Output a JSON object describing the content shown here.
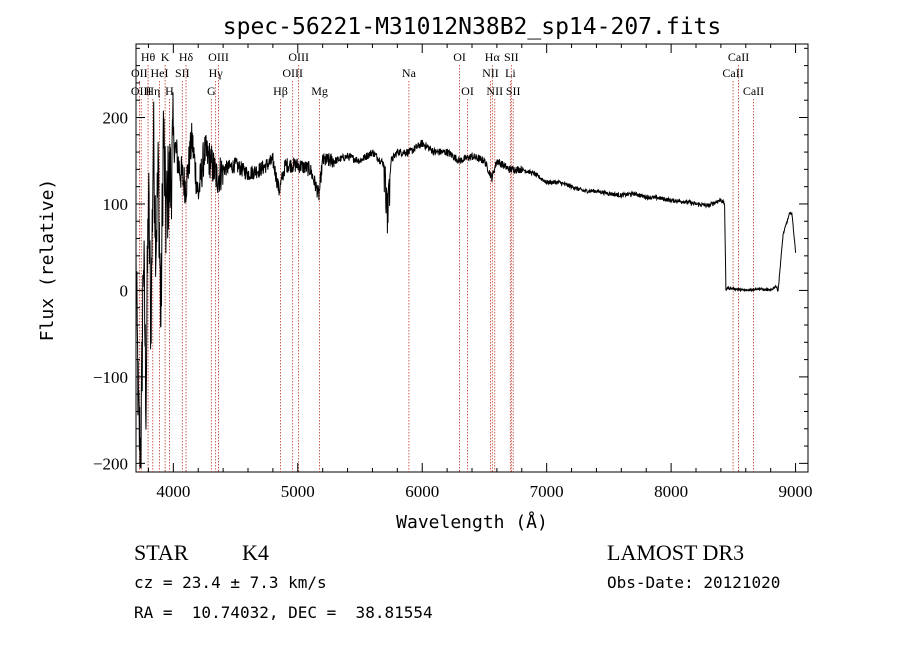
{
  "chart_data": {
    "type": "line",
    "title": "spec-56221-M31012N38B2_sp14-207.fits",
    "xlabel": "Wavelength (Å)",
    "ylabel": "Flux (relative)",
    "xlim": [
      3700,
      9100
    ],
    "ylim": [
      -210,
      285
    ],
    "x_ticks": [
      4000,
      5000,
      6000,
      7000,
      8000,
      9000
    ],
    "x_tick_labels": [
      "4000",
      "5000",
      "6000",
      "7000",
      "8000",
      "9000"
    ],
    "y_ticks": [
      -200,
      -100,
      0,
      100,
      200
    ],
    "y_tick_labels": [
      "−200",
      "−100",
      "0",
      "100",
      "200"
    ],
    "grid": false,
    "series": [
      {
        "name": "flux",
        "x": [
          3700,
          3720,
          3740,
          3760,
          3780,
          3800,
          3820,
          3840,
          3860,
          3880,
          3900,
          3920,
          3940,
          3960,
          3980,
          4000,
          4050,
          4100,
          4150,
          4200,
          4250,
          4300,
          4350,
          4400,
          4500,
          4600,
          4700,
          4800,
          4850,
          4900,
          5000,
          5100,
          5170,
          5200,
          5300,
          5400,
          5500,
          5600,
          5700,
          5720,
          5750,
          5800,
          5900,
          6000,
          6100,
          6200,
          6300,
          6400,
          6500,
          6560,
          6600,
          6700,
          6800,
          6900,
          7000,
          7100,
          7200,
          7300,
          7400,
          7500,
          7600,
          7700,
          7800,
          7900,
          8000,
          8100,
          8200,
          8300,
          8400,
          8430,
          8440,
          8450,
          8500,
          8600,
          8700,
          8800,
          8840,
          8860,
          8900,
          8950,
          8970,
          9000
        ],
        "y": [
          30,
          -150,
          -190,
          50,
          -120,
          110,
          -40,
          180,
          60,
          140,
          -40,
          190,
          80,
          120,
          130,
          175,
          140,
          120,
          175,
          110,
          160,
          150,
          130,
          140,
          145,
          135,
          140,
          150,
          115,
          145,
          145,
          140,
          110,
          150,
          150,
          155,
          150,
          160,
          145,
          105,
          150,
          160,
          160,
          170,
          160,
          160,
          150,
          155,
          150,
          130,
          150,
          140,
          140,
          135,
          125,
          125,
          120,
          115,
          115,
          112,
          110,
          112,
          108,
          107,
          104,
          103,
          100,
          98,
          105,
          100,
          0,
          3,
          2,
          0,
          2,
          0,
          5,
          0,
          65,
          88,
          90,
          45
        ]
      }
    ],
    "lines": [
      {
        "name": "Hθ",
        "x": 3797,
        "row": 1
      },
      {
        "name": "OII",
        "x": 3727,
        "row": 2
      },
      {
        "name": "OIII",
        "x": 3742,
        "row": 3
      },
      {
        "name": "Hη",
        "x": 3835,
        "row": 3
      },
      {
        "name": "HeI",
        "x": 3889,
        "row": 2
      },
      {
        "name": "K",
        "x": 3934,
        "row": 1
      },
      {
        "name": "H",
        "x": 3969,
        "row": 3
      },
      {
        "name": "SII",
        "x": 4072,
        "row": 2
      },
      {
        "name": "Hδ",
        "x": 4102,
        "row": 1
      },
      {
        "name": "OIII",
        "x": 4363,
        "row": 1
      },
      {
        "name": "Hγ",
        "x": 4340,
        "row": 2
      },
      {
        "name": "G",
        "x": 4305,
        "row": 3
      },
      {
        "name": "Hβ",
        "x": 4861,
        "row": 3
      },
      {
        "name": "OIII",
        "x": 5007,
        "row": 1
      },
      {
        "name": "OIII",
        "x": 4959,
        "row": 2
      },
      {
        "name": "Mg",
        "x": 5175,
        "row": 3
      },
      {
        "name": "Na",
        "x": 5893,
        "row": 2
      },
      {
        "name": "OI",
        "x": 6300,
        "row": 1
      },
      {
        "name": "OI",
        "x": 6364,
        "row": 3
      },
      {
        "name": "Hα",
        "x": 6563,
        "row": 1
      },
      {
        "name": "NII",
        "x": 6548,
        "row": 2
      },
      {
        "name": "NII",
        "x": 6583,
        "row": 3
      },
      {
        "name": "SII",
        "x": 6716,
        "row": 1
      },
      {
        "name": "Li",
        "x": 6708,
        "row": 2
      },
      {
        "name": "SII",
        "x": 6731,
        "row": 3
      },
      {
        "name": "CaII",
        "x": 8542,
        "row": 1
      },
      {
        "name": "CaII",
        "x": 8498,
        "row": 2
      },
      {
        "name": "CaII",
        "x": 8662,
        "row": 3
      }
    ]
  },
  "info": {
    "object_class": "STAR",
    "subclass": "K4",
    "redshift": "cz = 23.4 ± 7.3 km/s",
    "coords": "RA =  10.74032, DEC =  38.81554",
    "survey": "LAMOST DR3",
    "obs_date": "Obs-Date: 20121020"
  }
}
